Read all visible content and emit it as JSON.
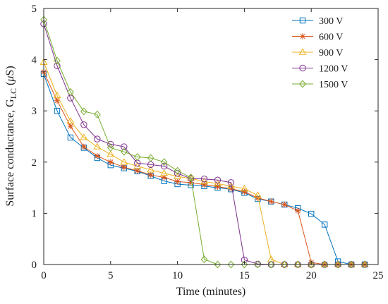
{
  "chart_data": {
    "type": "line",
    "xlabel": "Time (minutes)",
    "ylabel": {
      "prefix": "Surface conductance, G",
      "subscript": "LC",
      "suffix": " (",
      "mu": "μ",
      "unit": "S)"
    },
    "xlim": [
      0,
      25
    ],
    "ylim": [
      0,
      5
    ],
    "xticks": [
      0,
      5,
      10,
      15,
      20,
      25
    ],
    "yticks": [
      0,
      1,
      2,
      3,
      4,
      5
    ],
    "grid": false,
    "legend_position": "top-right",
    "series": [
      {
        "name": "300 V",
        "color": "#0072BD",
        "marker": "square",
        "x": [
          0,
          1,
          2,
          3,
          4,
          5,
          6,
          7,
          8,
          9,
          10,
          11,
          12,
          13,
          14,
          15,
          16,
          17,
          18,
          19,
          20,
          21,
          22,
          23,
          24
        ],
        "y": [
          3.72,
          3.0,
          2.48,
          2.28,
          2.08,
          1.94,
          1.88,
          1.82,
          1.73,
          1.63,
          1.57,
          1.55,
          1.53,
          1.5,
          1.47,
          1.4,
          1.28,
          1.23,
          1.17,
          1.1,
          0.99,
          0.78,
          0.06,
          0.0,
          0.0
        ]
      },
      {
        "name": "600 V",
        "color": "#D95319",
        "marker": "asterisk",
        "x": [
          0,
          1,
          2,
          3,
          4,
          5,
          6,
          7,
          8,
          9,
          10,
          11,
          12,
          13,
          14,
          15,
          16,
          17,
          18,
          19,
          20,
          21,
          22,
          23,
          24
        ],
        "y": [
          3.76,
          3.2,
          2.7,
          2.3,
          2.12,
          2.0,
          1.9,
          1.83,
          1.75,
          1.7,
          1.62,
          1.6,
          1.56,
          1.52,
          1.48,
          1.42,
          1.3,
          1.23,
          1.17,
          1.05,
          0.04,
          0.0,
          0.0,
          0.0,
          0.0
        ]
      },
      {
        "name": "900 V",
        "color": "#EDB120",
        "marker": "triangle",
        "x": [
          0,
          1,
          2,
          3,
          4,
          5,
          6,
          7,
          8,
          9,
          10,
          11,
          12,
          13,
          14,
          15,
          16,
          17,
          18,
          19,
          20,
          21,
          22,
          23,
          24
        ],
        "y": [
          3.95,
          3.3,
          2.8,
          2.48,
          2.3,
          2.15,
          2.0,
          1.92,
          1.85,
          1.78,
          1.72,
          1.68,
          1.62,
          1.58,
          1.53,
          1.48,
          1.35,
          0.1,
          0.0,
          0.0,
          0.0,
          0.0,
          0.0,
          0.0,
          0.0
        ]
      },
      {
        "name": "1200 V",
        "color": "#7E2F8E",
        "marker": "circle",
        "x": [
          0,
          1,
          2,
          3,
          4,
          5,
          6,
          7,
          8,
          9,
          10,
          11,
          12,
          13,
          14,
          15,
          16,
          17,
          18,
          19,
          20,
          21,
          22,
          23,
          24
        ],
        "y": [
          4.7,
          3.88,
          3.25,
          2.73,
          2.45,
          2.35,
          2.3,
          1.98,
          1.95,
          1.92,
          1.78,
          1.68,
          1.67,
          1.65,
          1.6,
          0.09,
          0.01,
          0.0,
          0.0,
          0.0,
          0.0,
          0.0,
          0.0,
          0.0,
          0.0
        ]
      },
      {
        "name": "1500 V",
        "color": "#77AC30",
        "marker": "diamond",
        "x": [
          0,
          1,
          2,
          3,
          4,
          5,
          6,
          7,
          8,
          9,
          10,
          11,
          12,
          13,
          14,
          15,
          16,
          17,
          18,
          19,
          20,
          21,
          22,
          23,
          24
        ],
        "y": [
          4.78,
          3.98,
          3.37,
          2.99,
          2.93,
          2.28,
          2.2,
          2.1,
          2.08,
          2.0,
          1.83,
          1.7,
          0.1,
          0.0,
          0.0,
          0.0,
          0.0,
          0.0,
          0.0,
          0.0,
          0.0,
          0.0,
          0.0,
          0.0,
          0.0
        ]
      }
    ]
  }
}
